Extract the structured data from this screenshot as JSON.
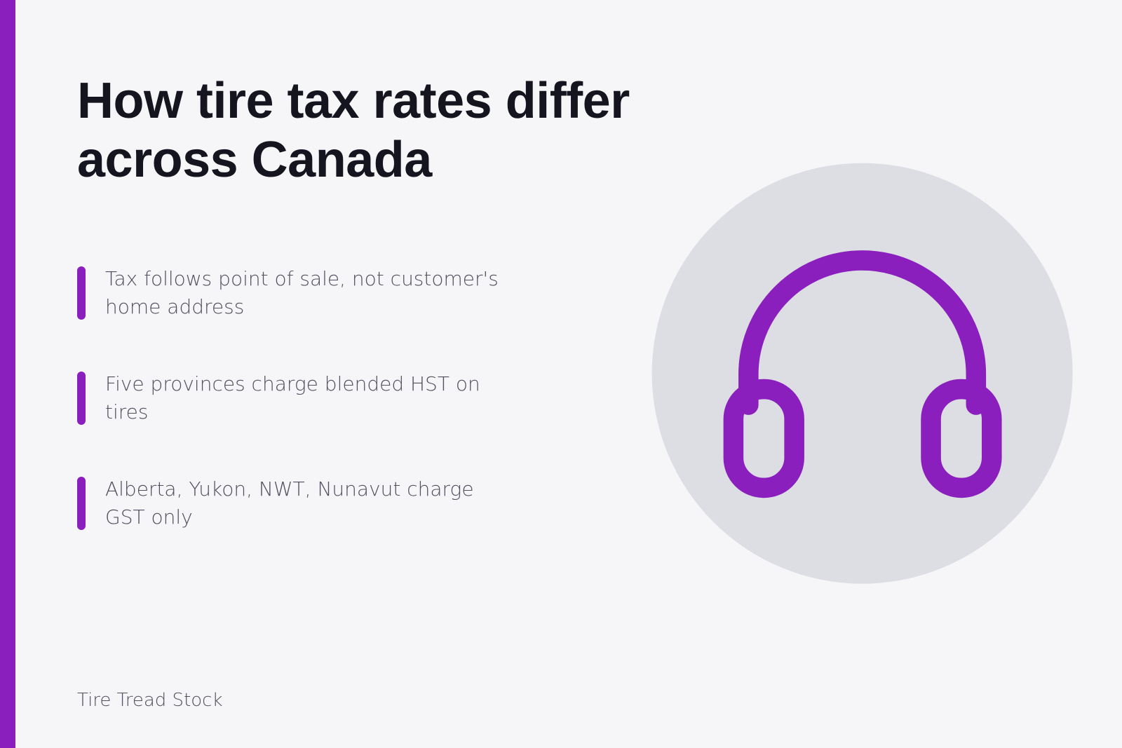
{
  "title": "How tire tax rates differ across Canada",
  "bullets": [
    "Tax follows point of sale, not customer's home address",
    "Five provinces charge blended HST on tires",
    "Alberta, Yukon, NWT, Nunavut charge GST only"
  ],
  "footer": "Tire Tread Stock"
}
